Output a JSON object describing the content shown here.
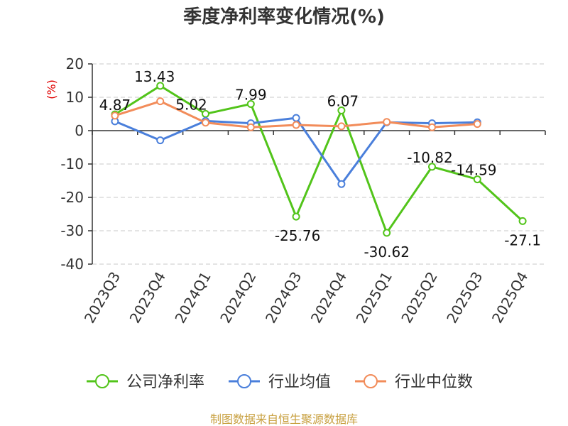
{
  "chart_data": {
    "type": "line",
    "title": "季度净利率变化情况(%)",
    "ylabel": "(%)",
    "xlabel": "",
    "categories": [
      "2023Q3",
      "2023Q4",
      "2024Q1",
      "2024Q2",
      "2024Q3",
      "2024Q4",
      "2025Q1",
      "2025Q2",
      "2025Q3",
      "2025Q4"
    ],
    "ylim": [
      -40,
      20
    ],
    "yticks": [
      20,
      10,
      0,
      -10,
      -20,
      -30,
      -40
    ],
    "grid": true,
    "legend_position": "bottom",
    "series": [
      {
        "name": "公司净利率",
        "color": "#52c41a",
        "values": [
          4.87,
          13.43,
          5.02,
          7.99,
          -25.76,
          6.07,
          -30.62,
          -10.82,
          -14.59,
          -27.1
        ],
        "labels": [
          "4.87",
          "13.43",
          "5.02",
          "7.99",
          "-25.76",
          "6.07",
          "-30.62",
          "-10.82",
          "-14.59",
          "-27.1"
        ]
      },
      {
        "name": "行业均值",
        "color": "#4a7fdb",
        "values": [
          2.8,
          -2.9,
          2.9,
          2.2,
          3.8,
          -16.0,
          2.5,
          2.2,
          2.5,
          null
        ]
      },
      {
        "name": "行业中位数",
        "color": "#f28c5a",
        "values": [
          4.5,
          8.8,
          2.4,
          1.0,
          1.7,
          1.3,
          2.6,
          1.0,
          2.0,
          null
        ]
      }
    ],
    "source": "制图数据来自恒生聚源数据库"
  }
}
